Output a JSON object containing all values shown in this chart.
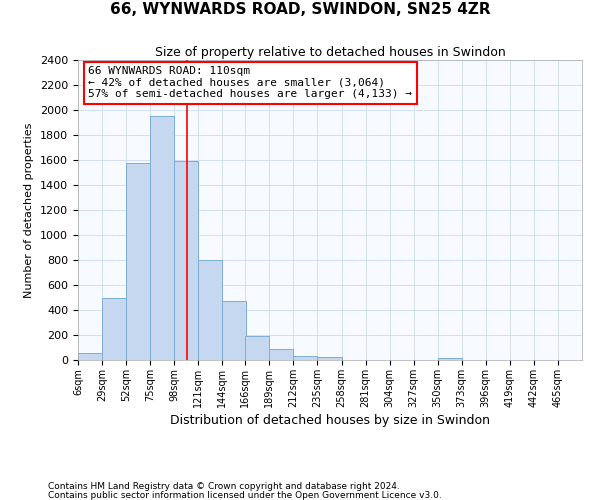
{
  "title1": "66, WYNWARDS ROAD, SWINDON, SN25 4ZR",
  "title2": "Size of property relative to detached houses in Swindon",
  "xlabel": "Distribution of detached houses by size in Swindon",
  "ylabel": "Number of detached properties",
  "footer1": "Contains HM Land Registry data © Crown copyright and database right 2024.",
  "footer2": "Contains public sector information licensed under the Open Government Licence v3.0.",
  "annotation_title": "66 WYNWARDS ROAD: 110sqm",
  "annotation_line1": "← 42% of detached houses are smaller (3,064)",
  "annotation_line2": "57% of semi-detached houses are larger (4,133) →",
  "property_size": 110,
  "bar_fill_color": "#c5d8f0",
  "bar_edge_color": "#7bafd4",
  "vline_color": "red",
  "annotation_box_edgecolor": "red",
  "plot_bg_color": "#f7faff",
  "grid_color": "#d0dff0",
  "fig_bg_color": "#ffffff",
  "categories": [
    "6sqm",
    "29sqm",
    "52sqm",
    "75sqm",
    "98sqm",
    "121sqm",
    "144sqm",
    "166sqm",
    "189sqm",
    "212sqm",
    "235sqm",
    "258sqm",
    "281sqm",
    "304sqm",
    "327sqm",
    "350sqm",
    "373sqm",
    "396sqm",
    "419sqm",
    "442sqm",
    "465sqm"
  ],
  "bin_left_edges": [
    6,
    29,
    52,
    75,
    98,
    121,
    144,
    166,
    189,
    212,
    235,
    258,
    281,
    304,
    327,
    350,
    373,
    396,
    419,
    442,
    465
  ],
  "bin_width": 23,
  "values": [
    55,
    500,
    1580,
    1950,
    1590,
    800,
    475,
    190,
    90,
    35,
    25,
    0,
    0,
    0,
    0,
    20,
    0,
    0,
    0,
    0
  ],
  "ylim": [
    0,
    2400
  ],
  "yticks": [
    0,
    200,
    400,
    600,
    800,
    1000,
    1200,
    1400,
    1600,
    1800,
    2000,
    2200,
    2400
  ],
  "title1_fontsize": 11,
  "title2_fontsize": 9,
  "ylabel_fontsize": 8,
  "xlabel_fontsize": 9,
  "tick_fontsize": 8,
  "xtick_fontsize": 7,
  "footer_fontsize": 6.5,
  "annotation_fontsize": 8
}
